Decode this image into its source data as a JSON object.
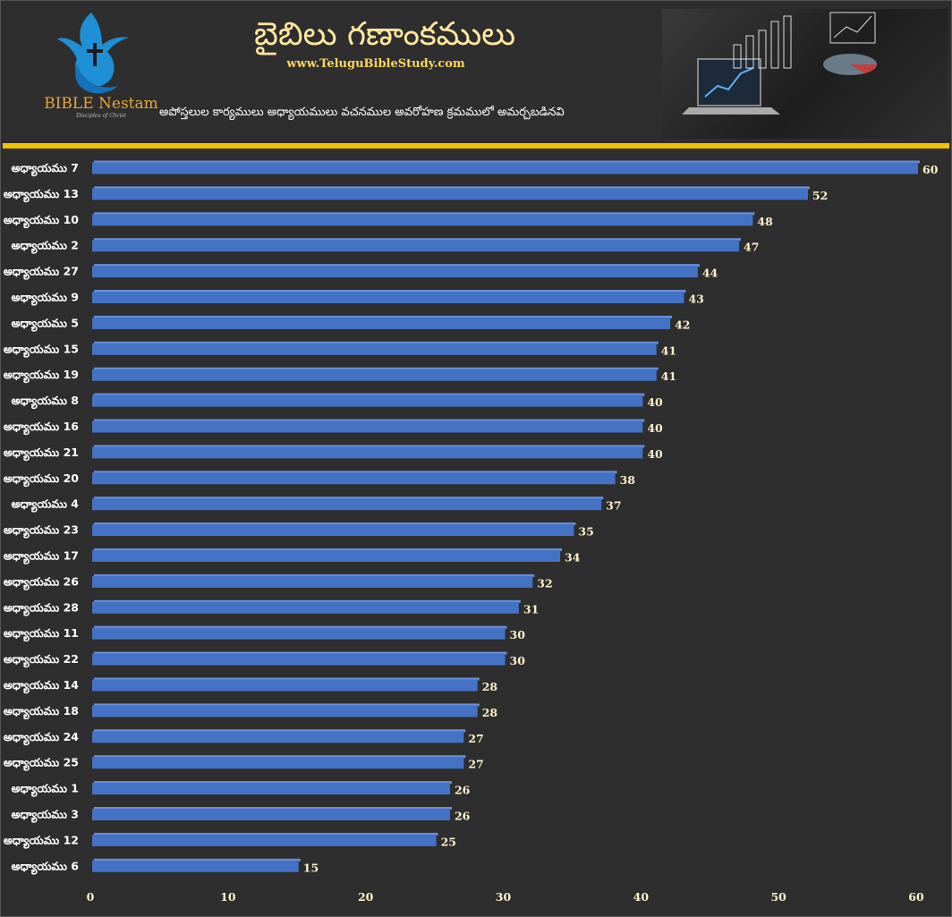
{
  "header": {
    "logo_text": "BIBLE Nestam",
    "logo_tagline": "Disciples of Christ",
    "title": "బైబిలు గణాంకములు",
    "url": "www.TeluguBibleStudy.com",
    "subtitle": "అపోస్తలుల కార్యములు అధ్యాయములు వచనముల అవరోహణ క్రమములో అమర్చబడినవి"
  },
  "colors": {
    "background": "#2e2e2e",
    "bar": "#4472c4",
    "divider": "#f2c200",
    "label": "#fff2cc"
  },
  "chart_data": {
    "type": "bar",
    "orientation": "horizontal",
    "categories": [
      "అధ్యాయము 7",
      "అధ్యాయము 13",
      "అధ్యాయము 10",
      "అధ్యాయము 2",
      "అధ్యాయము 27",
      "అధ్యాయము 9",
      "అధ్యాయము 5",
      "అధ్యాయము 15",
      "అధ్యాయము 19",
      "అధ్యాయము 8",
      "అధ్యాయము 16",
      "అధ్యాయము 21",
      "అధ్యాయము 20",
      "అధ్యాయము 4",
      "అధ్యాయము 23",
      "అధ్యాయము 17",
      "అధ్యాయము 26",
      "అధ్యాయము 28",
      "అధ్యాయము 11",
      "అధ్యాయము 22",
      "అధ్యాయము 14",
      "అధ్యాయము 18",
      "అధ్యాయము 24",
      "అధ్యాయము 25",
      "అధ్యాయము 1",
      "అధ్యాయము 3",
      "అధ్యాయము 12",
      "అధ్యాయము 6"
    ],
    "values": [
      60,
      52,
      48,
      47,
      44,
      43,
      42,
      41,
      41,
      40,
      40,
      40,
      38,
      37,
      35,
      34,
      32,
      31,
      30,
      30,
      28,
      28,
      27,
      27,
      26,
      26,
      25,
      15
    ],
    "xlim": [
      0,
      60
    ],
    "xticks": [
      0,
      10,
      20,
      30,
      40,
      50,
      60
    ],
    "grid": false,
    "legend": "none"
  }
}
